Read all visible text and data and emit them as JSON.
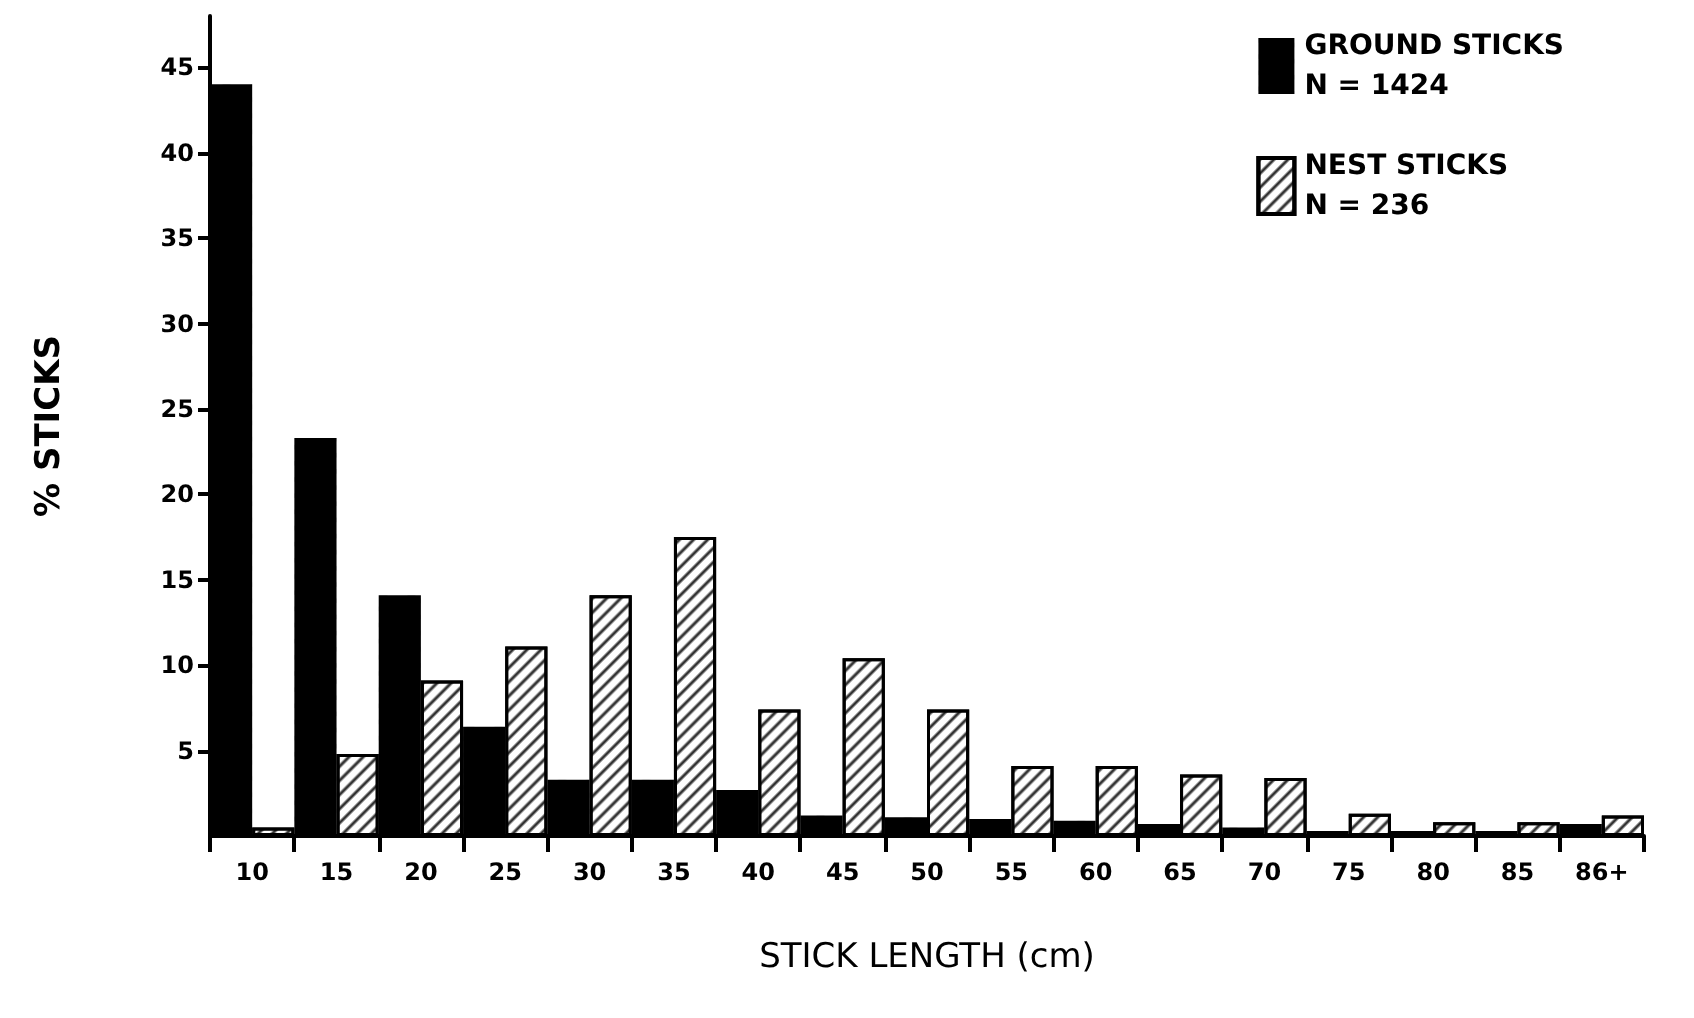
{
  "chart_data": {
    "type": "bar",
    "xlabel": "STICK LENGTH (cm)",
    "ylabel": "% STICKS",
    "categories": [
      "10",
      "15",
      "20",
      "25",
      "30",
      "35",
      "40",
      "45",
      "50",
      "55",
      "60",
      "65",
      "70",
      "75",
      "80",
      "85",
      "86+"
    ],
    "series": [
      {
        "name": "GROUND STICKS\nN = 1424",
        "color": "#000000",
        "values": [
          44,
          23.3,
          14.1,
          6.4,
          3.3,
          3.3,
          2.7,
          1.2,
          1.1,
          1,
          0.9,
          0.7,
          0.5,
          0.3,
          0.3,
          0.3,
          0.7
        ]
      },
      {
        "name": "NEST STICKS\nN = 236",
        "color": "#ffffff",
        "values": [
          0.5,
          4.8,
          9.1,
          11.1,
          14.1,
          17.5,
          7.4,
          10.4,
          7.4,
          4.1,
          4.1,
          3.6,
          3.4,
          1.3,
          0.8,
          0.8,
          1.2
        ]
      }
    ],
    "ylim": [
      0,
      48
    ],
    "yticks": [
      5,
      10,
      15,
      20,
      25,
      30,
      35,
      40,
      45
    ],
    "grid": false,
    "legend": "top right"
  }
}
